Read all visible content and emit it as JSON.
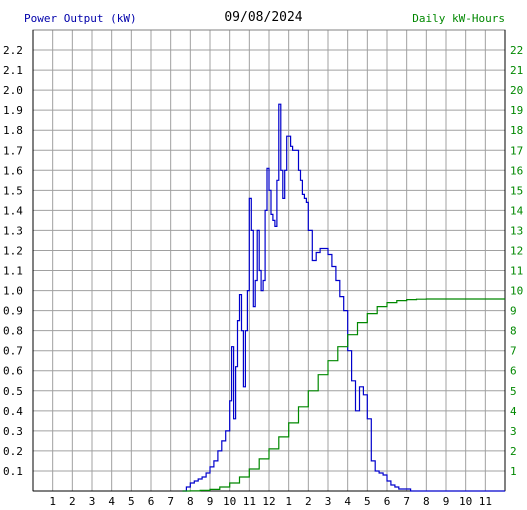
{
  "header": {
    "left_label": "Power Output (kW)",
    "date": "09/08/2024",
    "right_label": "Daily kW-Hours"
  },
  "colors": {
    "power": "#0000cc",
    "energy": "#008800",
    "grid": "#a0a0a0",
    "left_axis_text": "#000000",
    "right_axis_text": "#008800"
  },
  "chart_data": {
    "type": "line",
    "title": "09/08/2024",
    "grid": true,
    "x_ticks": [
      "1",
      "2",
      "3",
      "4",
      "5",
      "6",
      "7",
      "8",
      "9",
      "10",
      "11",
      "12",
      "1",
      "2",
      "3",
      "4",
      "5",
      "6",
      "7",
      "8",
      "9",
      "10",
      "11"
    ],
    "x_range_hours": [
      0,
      24
    ],
    "y_left": {
      "label": "Power Output (kW)",
      "range": [
        0,
        2.3
      ],
      "ticks": [
        "0.1",
        "0.2",
        "0.3",
        "0.4",
        "0.5",
        "0.6",
        "0.7",
        "0.8",
        "0.9",
        "1.0",
        "1.1",
        "1.2",
        "1.3",
        "1.4",
        "1.5",
        "1.6",
        "1.7",
        "1.8",
        "1.9",
        "2.0",
        "2.1",
        "2.2"
      ]
    },
    "y_right": {
      "label": "Daily kW-Hours",
      "range": [
        0,
        23
      ],
      "ticks": [
        "1",
        "2",
        "3",
        "4",
        "5",
        "6",
        "7",
        "8",
        "9",
        "10",
        "11",
        "12",
        "13",
        "14",
        "15",
        "16",
        "17",
        "18",
        "19",
        "20",
        "21",
        "22"
      ]
    },
    "series": [
      {
        "name": "Power Output (kW)",
        "axis": "left",
        "color": "#0000cc",
        "hours": [
          7.6,
          7.8,
          8.0,
          8.2,
          8.4,
          8.6,
          8.8,
          9.0,
          9.2,
          9.4,
          9.6,
          9.8,
          10.0,
          10.1,
          10.2,
          10.3,
          10.4,
          10.5,
          10.6,
          10.7,
          10.8,
          10.9,
          11.0,
          11.1,
          11.2,
          11.3,
          11.4,
          11.5,
          11.6,
          11.7,
          11.8,
          11.9,
          12.0,
          12.1,
          12.2,
          12.3,
          12.4,
          12.5,
          12.6,
          12.7,
          12.8,
          12.9,
          13.0,
          13.1,
          13.2,
          13.3,
          13.4,
          13.5,
          13.6,
          13.7,
          13.8,
          13.9,
          14.0,
          14.2,
          14.4,
          14.6,
          14.8,
          15.0,
          15.2,
          15.4,
          15.6,
          15.8,
          16.0,
          16.2,
          16.4,
          16.6,
          16.8,
          17.0,
          17.2,
          17.4,
          17.6,
          17.8,
          18.0,
          18.2,
          18.4,
          18.6,
          18.8,
          19.0,
          19.2,
          19.4,
          19.6,
          19.8,
          20.0,
          20.2,
          20.4
        ],
        "values": [
          0.0,
          0.02,
          0.04,
          0.05,
          0.06,
          0.07,
          0.09,
          0.12,
          0.15,
          0.2,
          0.25,
          0.3,
          0.45,
          0.72,
          0.36,
          0.62,
          0.85,
          0.98,
          0.8,
          0.52,
          0.8,
          1.0,
          1.46,
          1.3,
          0.92,
          1.05,
          1.3,
          1.1,
          1.0,
          1.05,
          1.4,
          1.61,
          1.5,
          1.38,
          1.35,
          1.32,
          1.55,
          1.93,
          1.6,
          1.46,
          1.6,
          1.77,
          1.77,
          1.72,
          1.7,
          1.7,
          1.7,
          1.6,
          1.55,
          1.48,
          1.46,
          1.44,
          1.3,
          1.15,
          1.19,
          1.21,
          1.21,
          1.18,
          1.12,
          1.05,
          0.97,
          0.9,
          0.7,
          0.55,
          0.4,
          0.52,
          0.48,
          0.36,
          0.15,
          0.1,
          0.09,
          0.08,
          0.05,
          0.03,
          0.02,
          0.01,
          0.01,
          0.01,
          0.0,
          0.0,
          0.0,
          0.0,
          0.0,
          0.0,
          0.0
        ]
      },
      {
        "name": "Daily kW-Hours",
        "axis": "right",
        "color": "#008800",
        "hours": [
          7.6,
          8.0,
          8.5,
          9.0,
          9.5,
          10.0,
          10.5,
          11.0,
          11.5,
          12.0,
          12.5,
          13.0,
          13.5,
          14.0,
          14.5,
          15.0,
          15.5,
          16.0,
          16.5,
          17.0,
          17.5,
          18.0,
          18.5,
          19.0,
          19.5,
          20.0,
          21.0,
          22.0,
          23.0,
          24.0
        ],
        "values": [
          0.0,
          0.01,
          0.03,
          0.08,
          0.2,
          0.4,
          0.7,
          1.1,
          1.6,
          2.1,
          2.7,
          3.4,
          4.2,
          5.0,
          5.8,
          6.5,
          7.2,
          7.8,
          8.4,
          8.85,
          9.2,
          9.4,
          9.5,
          9.55,
          9.57,
          9.58,
          9.58,
          9.58,
          9.58,
          9.58
        ]
      }
    ]
  }
}
